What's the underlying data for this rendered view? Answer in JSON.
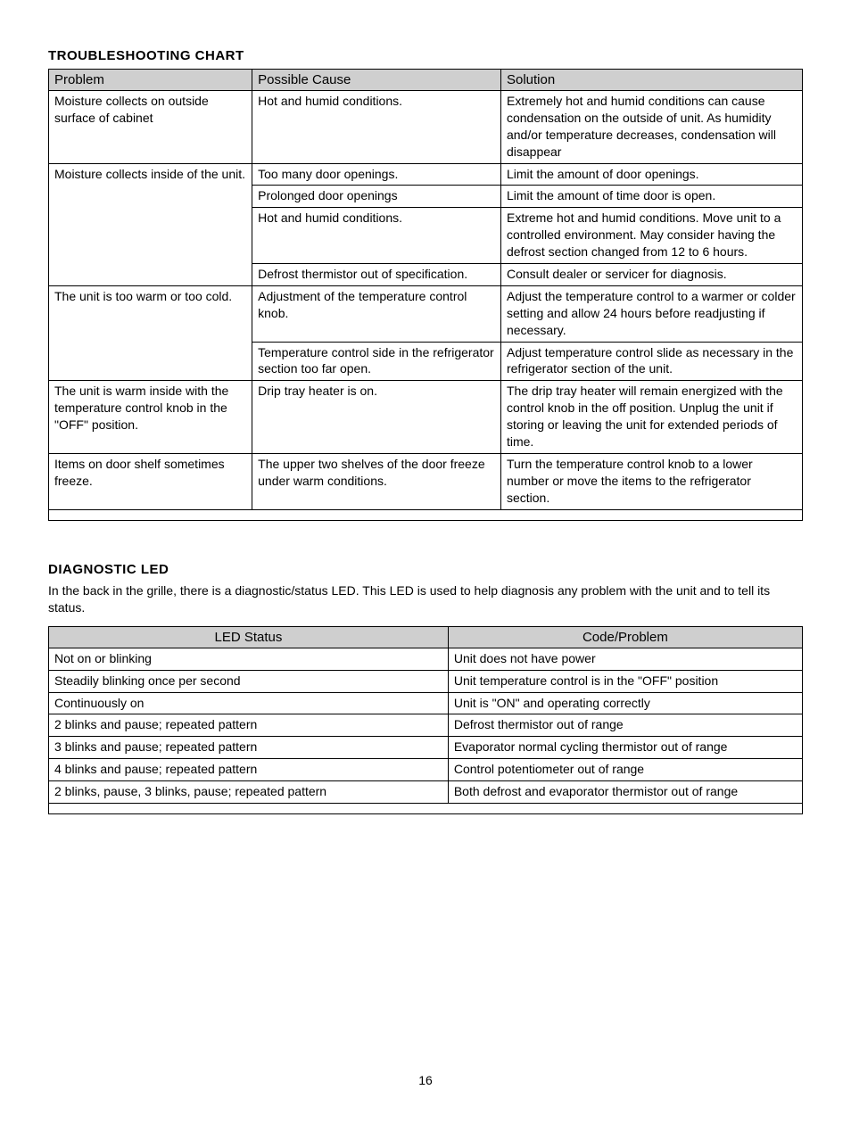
{
  "page_number": "16",
  "troubleshooting": {
    "heading": "TROUBLESHOOTING CHART",
    "columns": [
      "Problem",
      "Possible Cause",
      "Solution"
    ],
    "column_widths": [
      "27%",
      "33%",
      "40%"
    ],
    "header_bg": "#cfcfcf",
    "rows": [
      {
        "problem": "Moisture collects on outside surface of cabinet",
        "cause": "Hot and humid conditions.",
        "solution": "Extremely hot and humid conditions can cause condensation on the outside of unit.  As humidity and/or temperature decreases, condensation will disappear",
        "last": true
      },
      {
        "problem": "Moisture collects inside of the unit.",
        "cause": "Too many door openings.",
        "solution": "Limit the amount of door openings."
      },
      {
        "problem": "",
        "cause": "Prolonged door openings",
        "solution": "Limit the amount of time door is open."
      },
      {
        "problem": "",
        "cause": "Hot and humid conditions.",
        "solution": "Extreme hot and humid conditions.  Move unit to a controlled environment.  May consider having the defrost section changed from 12 to 6 hours."
      },
      {
        "problem": "",
        "cause": "Defrost thermistor out of specification.",
        "solution": "Consult dealer or servicer for diagnosis.",
        "last": true
      },
      {
        "problem": "The unit is too warm or too cold.",
        "cause": "Adjustment of the temperature control knob.",
        "solution": "Adjust the temperature control to a warmer or colder setting and allow 24 hours before readjusting if necessary."
      },
      {
        "problem": "",
        "cause": "Temperature control side in the refrigerator section too far open.",
        "solution": "Adjust temperature control slide as necessary in the refrigerator section of the unit.",
        "last": true
      },
      {
        "problem": "The unit is warm inside with the temperature control knob in the \"OFF\" position.",
        "cause": "Drip tray heater is on.",
        "solution": "The drip tray heater will remain energized with the control knob in the off position.  Unplug the unit if storing or leaving the unit for extended periods of time.",
        "last": true
      },
      {
        "problem": "Items on door shelf sometimes freeze.",
        "cause": "The upper two shelves of the door freeze under warm conditions.",
        "solution": "Turn the temperature control knob to a lower number or move the items to the refrigerator section.",
        "last": true
      }
    ]
  },
  "diagnostic": {
    "heading": "DIAGNOSTIC LED",
    "intro": "In the back in the grille, there is a diagnostic/status LED.  This LED is used to help diagnosis any problem with the unit and to tell its status.",
    "columns": [
      "LED Status",
      "Code/Problem"
    ],
    "column_widths": [
      "53%",
      "47%"
    ],
    "header_bg": "#cfcfcf",
    "rows": [
      {
        "status": "Not on or blinking",
        "code": "Unit does not have power"
      },
      {
        "status": "Steadily blinking once per second",
        "code": "Unit temperature control is in the \"OFF\" position"
      },
      {
        "status": "Continuously on",
        "code": "Unit is \"ON\" and operating correctly"
      },
      {
        "status": "2 blinks and pause; repeated pattern",
        "code": "Defrost thermistor out of range"
      },
      {
        "status": "3 blinks and pause; repeated pattern",
        "code": "Evaporator normal cycling thermistor out of range"
      },
      {
        "status": "4 blinks and pause; repeated pattern",
        "code": "Control potentiometer out of range"
      },
      {
        "status": "2 blinks, pause, 3 blinks, pause; repeated pattern",
        "code": "Both defrost and evaporator thermistor out of range"
      }
    ]
  }
}
